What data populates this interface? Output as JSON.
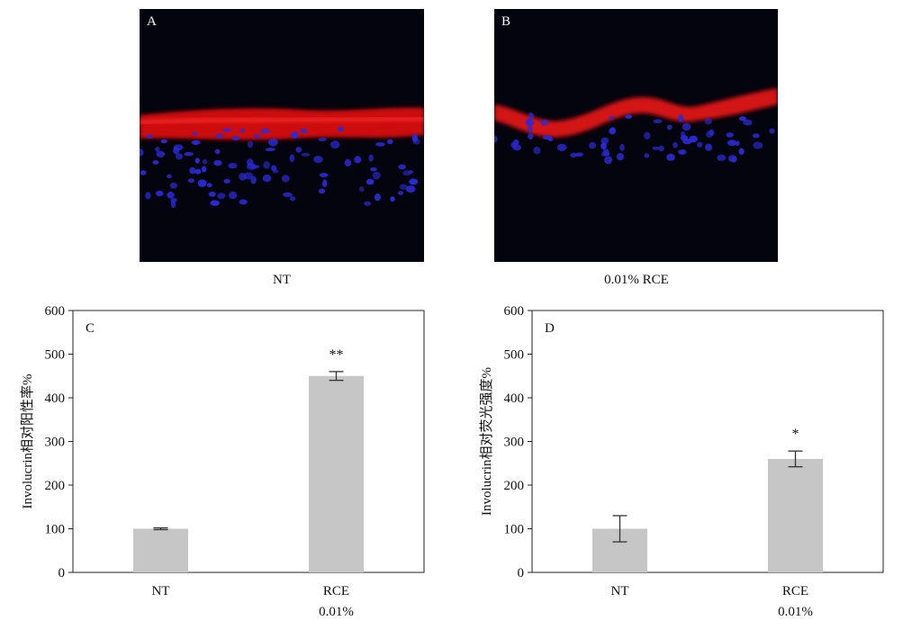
{
  "panels": {
    "a": {
      "letter": "A",
      "caption": "NT"
    },
    "b": {
      "letter": "B",
      "caption": "0.01% RCE"
    }
  },
  "chart_data": [
    {
      "type": "bar",
      "panel_letter": "C",
      "ylabel": "Involucrin相对阳性率%",
      "categories": [
        "NT",
        "RCE"
      ],
      "category_sublabels": [
        "",
        "0.01%"
      ],
      "values": [
        100,
        450
      ],
      "errors": [
        2,
        10
      ],
      "significance": [
        "",
        "**"
      ],
      "ylim": [
        0,
        600
      ],
      "yticks": [
        0,
        100,
        200,
        300,
        400,
        500,
        600
      ],
      "bar_color": "#c6c6c6",
      "grid": false
    },
    {
      "type": "bar",
      "panel_letter": "D",
      "ylabel": "Involucrin相对荧光强度%",
      "categories": [
        "NT",
        "RCE"
      ],
      "category_sublabels": [
        "",
        "0.01%"
      ],
      "values": [
        100,
        260
      ],
      "errors": [
        30,
        18
      ],
      "significance": [
        "",
        "*"
      ],
      "ylim": [
        0,
        600
      ],
      "yticks": [
        0,
        100,
        200,
        300,
        400,
        500,
        600
      ],
      "bar_color": "#c6c6c6",
      "grid": false
    }
  ]
}
